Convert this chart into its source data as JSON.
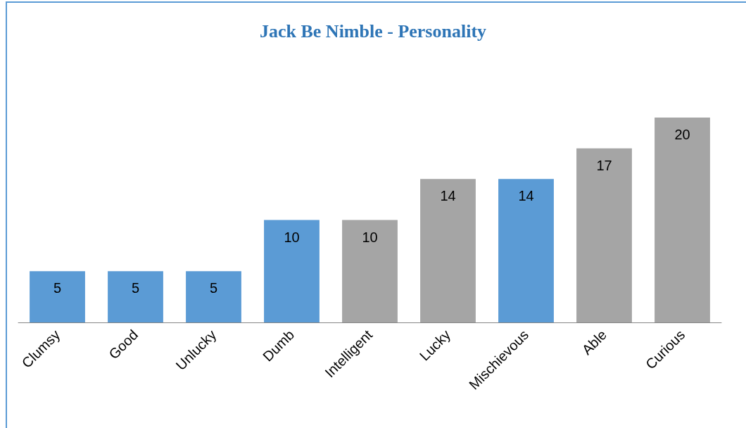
{
  "chart_data": {
    "type": "bar",
    "title": "Jack Be Nimble - Personality",
    "categories": [
      "Clumsy",
      "Good",
      "Unlucky",
      "Dumb",
      "Intelligent",
      "Lucky",
      "Mischievous",
      "Able",
      "Curious"
    ],
    "values": [
      5,
      5,
      5,
      10,
      10,
      14,
      14,
      17,
      20
    ],
    "colors": [
      "#5b9bd5",
      "#5b9bd5",
      "#5b9bd5",
      "#5b9bd5",
      "#a5a5a5",
      "#a5a5a5",
      "#5b9bd5",
      "#a5a5a5",
      "#a5a5a5"
    ],
    "data_labels": true
  }
}
